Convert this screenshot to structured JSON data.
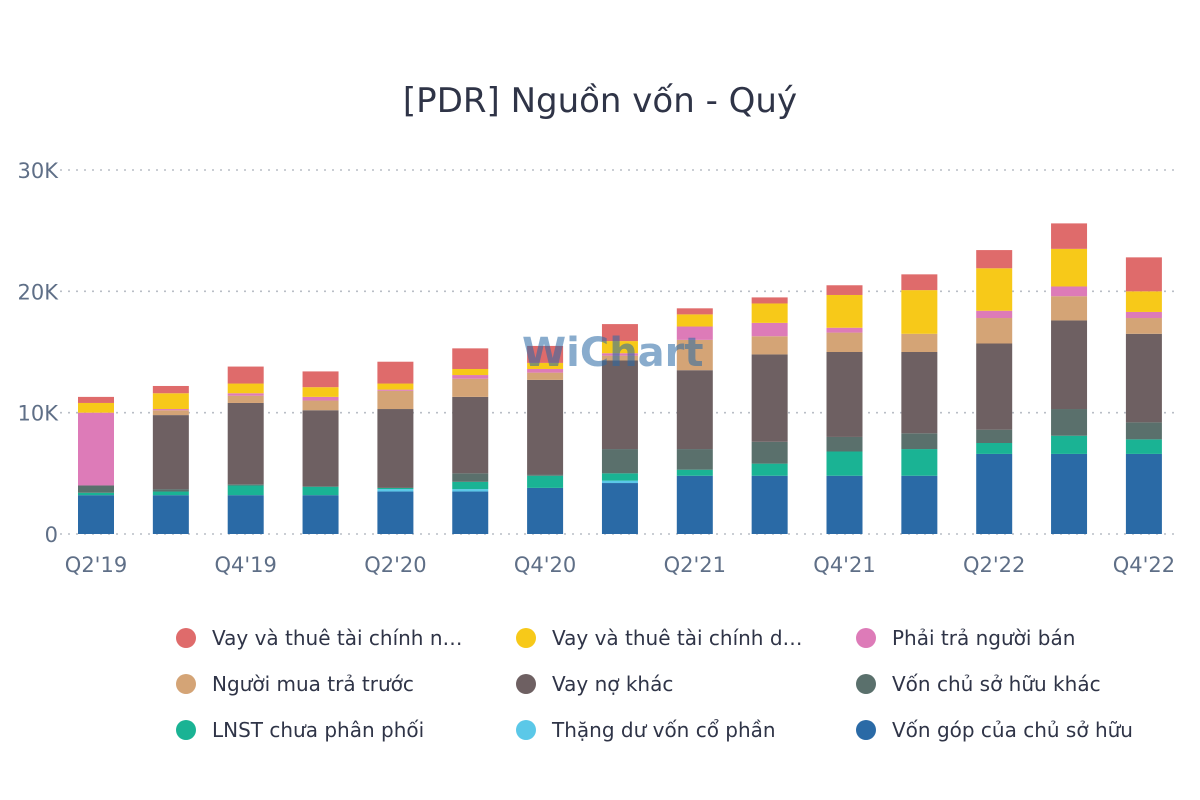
{
  "chart_data": {
    "type": "bar",
    "stacked": true,
    "title": "[PDR] Nguồn vốn - Quý",
    "categories": [
      "Q2'19",
      "Q3'19",
      "Q4'19",
      "Q1'20",
      "Q2'20",
      "Q3'20",
      "Q4'20",
      "Q1'21",
      "Q2'21",
      "Q3'21",
      "Q4'21",
      "Q1'22",
      "Q2'22",
      "Q3'22",
      "Q4'22"
    ],
    "x_tick_labels": [
      "Q2'19",
      "Q4'19",
      "Q2'20",
      "Q4'20",
      "Q2'21",
      "Q4'21",
      "Q2'22",
      "Q4'22"
    ],
    "y_tick_labels": [
      "0",
      "10K",
      "20K",
      "30K"
    ],
    "ylim": [
      0,
      30000
    ],
    "grid": true,
    "legend_position": "bottom",
    "watermark": "WiChart",
    "series": [
      {
        "name": "Vốn góp của chủ sở hữu",
        "color": "#2a6aa6",
        "values": [
          3200,
          3200,
          3200,
          3200,
          3500,
          3500,
          3800,
          4200,
          4800,
          4800,
          4800,
          4800,
          6600,
          6600,
          6600
        ]
      },
      {
        "name": "Thặng dư vốn cổ phần",
        "color": "#5bc8e8",
        "values": [
          0,
          0,
          0,
          0,
          200,
          200,
          0,
          200,
          0,
          0,
          0,
          0,
          0,
          0,
          0
        ]
      },
      {
        "name": "LNST chưa phân phối",
        "color": "#1ab394",
        "values": [
          200,
          300,
          800,
          700,
          100,
          600,
          1000,
          600,
          500,
          1000,
          2000,
          2200,
          900,
          1500,
          1200
        ]
      },
      {
        "name": "Vốn chủ sở hữu khác",
        "color": "#5a706c",
        "values": [
          600,
          200,
          100,
          0,
          0,
          700,
          100,
          2000,
          1700,
          1800,
          1200,
          1300,
          1100,
          2200,
          1400
        ]
      },
      {
        "name": "Vay nợ khác",
        "color": "#6e6062",
        "values": [
          0,
          6100,
          6700,
          6300,
          6500,
          6300,
          7800,
          7300,
          6500,
          7200,
          7000,
          6700,
          7100,
          7300,
          7300
        ]
      },
      {
        "name": "Người mua trả trước",
        "color": "#d4a476",
        "values": [
          0,
          400,
          600,
          800,
          1500,
          1500,
          600,
          400,
          2500,
          1500,
          1600,
          1500,
          2100,
          2000,
          1300
        ]
      },
      {
        "name": "Phải trả người bán",
        "color": "#dd7bb8",
        "values": [
          6000,
          100,
          200,
          300,
          100,
          300,
          300,
          200,
          1100,
          1100,
          400,
          0,
          600,
          800,
          500
        ]
      },
      {
        "name": "Vay và thuê tài chính d…",
        "color": "#f7c919",
        "values": [
          800,
          1300,
          800,
          800,
          500,
          500,
          500,
          1000,
          1000,
          1600,
          2700,
          3600,
          3500,
          3100,
          1700
        ]
      },
      {
        "name": "Vay và thuê tài chính n…",
        "color": "#df6b6b",
        "values": [
          500,
          600,
          1400,
          1300,
          1800,
          1700,
          1400,
          1400,
          500,
          500,
          800,
          1300,
          1500,
          2100,
          2800
        ]
      }
    ]
  },
  "legend": {
    "items": [
      {
        "label": "Vay và thuê tài chính n…",
        "color": "#df6b6b"
      },
      {
        "label": "Vay và thuê tài chính d…",
        "color": "#f7c919"
      },
      {
        "label": "Phải trả người bán",
        "color": "#dd7bb8"
      },
      {
        "label": "Người mua trả trước",
        "color": "#d4a476"
      },
      {
        "label": "Vay nợ khác",
        "color": "#6e6062"
      },
      {
        "label": "Vốn chủ sở hữu khác",
        "color": "#5a706c"
      },
      {
        "label": "LNST chưa phân phối",
        "color": "#1ab394"
      },
      {
        "label": "Thặng dư vốn cổ phần",
        "color": "#5bc8e8"
      },
      {
        "label": "Vốn góp của chủ sở hữu",
        "color": "#2a6aa6"
      }
    ]
  }
}
